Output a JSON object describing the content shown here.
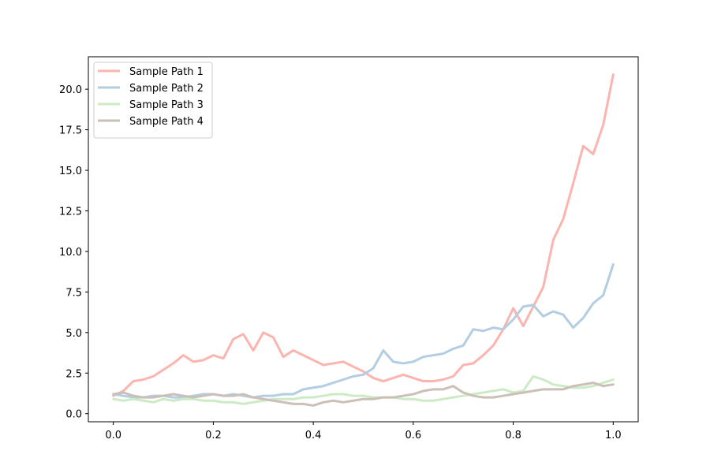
{
  "chart_data": {
    "type": "line",
    "title": "",
    "xlabel": "",
    "ylabel": "",
    "xlim": [
      -0.05,
      1.05
    ],
    "ylim": [
      -0.5,
      22.0
    ],
    "xticks": [
      0.0,
      0.2,
      0.4,
      0.6,
      0.8,
      1.0
    ],
    "xtick_labels": [
      "0.0",
      "0.2",
      "0.4",
      "0.6",
      "0.8",
      "1.0"
    ],
    "yticks": [
      0.0,
      2.5,
      5.0,
      7.5,
      10.0,
      12.5,
      15.0,
      17.5,
      20.0
    ],
    "ytick_labels": [
      "0.0",
      "2.5",
      "5.0",
      "7.5",
      "10.0",
      "12.5",
      "15.0",
      "17.5",
      "20.0"
    ],
    "grid": false,
    "legend_position": "top-left",
    "x": [
      0.0,
      0.02,
      0.04,
      0.06,
      0.08,
      0.1,
      0.12,
      0.14,
      0.16,
      0.18,
      0.2,
      0.22,
      0.24,
      0.26,
      0.28,
      0.3,
      0.32,
      0.34,
      0.36,
      0.38,
      0.4,
      0.42,
      0.44,
      0.46,
      0.48,
      0.5,
      0.52,
      0.54,
      0.56,
      0.58,
      0.6,
      0.62,
      0.64,
      0.66,
      0.68,
      0.7,
      0.72,
      0.74,
      0.76,
      0.78,
      0.8,
      0.82,
      0.84,
      0.86,
      0.88,
      0.9,
      0.92,
      0.94,
      0.96,
      0.98,
      1.0
    ],
    "series": [
      {
        "name": "Sample Path 1",
        "color": "#fbb4ae",
        "values": [
          1.1,
          1.4,
          2.0,
          2.1,
          2.3,
          2.7,
          3.1,
          3.6,
          3.2,
          3.3,
          3.6,
          3.4,
          4.6,
          4.9,
          3.9,
          5.0,
          4.7,
          3.5,
          3.9,
          3.6,
          3.3,
          3.0,
          3.1,
          3.2,
          2.9,
          2.6,
          2.2,
          2.0,
          2.2,
          2.4,
          2.2,
          2.0,
          2.0,
          2.1,
          2.3,
          3.0,
          3.1,
          3.6,
          4.2,
          5.2,
          6.5,
          5.4,
          6.6,
          7.8,
          10.7,
          12.0,
          14.2,
          16.5,
          16.0,
          17.8,
          20.9
        ]
      },
      {
        "name": "Sample Path 2",
        "color": "#b3cde3",
        "values": [
          1.2,
          1.1,
          1.0,
          1.0,
          1.1,
          1.1,
          1.0,
          1.0,
          1.1,
          1.2,
          1.2,
          1.1,
          1.2,
          1.1,
          1.0,
          1.1,
          1.1,
          1.2,
          1.2,
          1.5,
          1.6,
          1.7,
          1.9,
          2.1,
          2.3,
          2.4,
          2.8,
          3.9,
          3.2,
          3.1,
          3.2,
          3.5,
          3.6,
          3.7,
          4.0,
          4.2,
          5.2,
          5.1,
          5.3,
          5.2,
          5.8,
          6.6,
          6.7,
          6.0,
          6.3,
          6.1,
          5.3,
          5.9,
          6.8,
          7.3,
          9.2
        ]
      },
      {
        "name": "Sample Path 3",
        "color": "#ccebc5",
        "values": [
          0.9,
          0.8,
          0.9,
          0.8,
          0.7,
          0.9,
          0.8,
          0.9,
          0.9,
          0.8,
          0.8,
          0.7,
          0.7,
          0.6,
          0.7,
          0.8,
          0.9,
          0.9,
          0.9,
          1.0,
          1.0,
          1.1,
          1.2,
          1.2,
          1.1,
          1.1,
          1.0,
          1.0,
          1.0,
          0.9,
          0.9,
          0.8,
          0.8,
          0.9,
          1.0,
          1.1,
          1.2,
          1.3,
          1.4,
          1.5,
          1.3,
          1.4,
          2.3,
          2.1,
          1.8,
          1.7,
          1.6,
          1.6,
          1.7,
          1.9,
          2.1
        ]
      },
      {
        "name": "Sample Path 4",
        "color": "#cbc0b7",
        "values": [
          1.2,
          1.3,
          1.1,
          1.0,
          1.0,
          1.1,
          1.2,
          1.1,
          1.0,
          1.1,
          1.2,
          1.1,
          1.1,
          1.2,
          1.0,
          0.9,
          0.8,
          0.7,
          0.6,
          0.6,
          0.5,
          0.7,
          0.8,
          0.7,
          0.8,
          0.9,
          0.9,
          1.0,
          1.0,
          1.1,
          1.2,
          1.4,
          1.5,
          1.5,
          1.7,
          1.3,
          1.1,
          1.0,
          1.0,
          1.1,
          1.2,
          1.3,
          1.4,
          1.5,
          1.5,
          1.5,
          1.7,
          1.8,
          1.9,
          1.7,
          1.8
        ]
      }
    ]
  }
}
